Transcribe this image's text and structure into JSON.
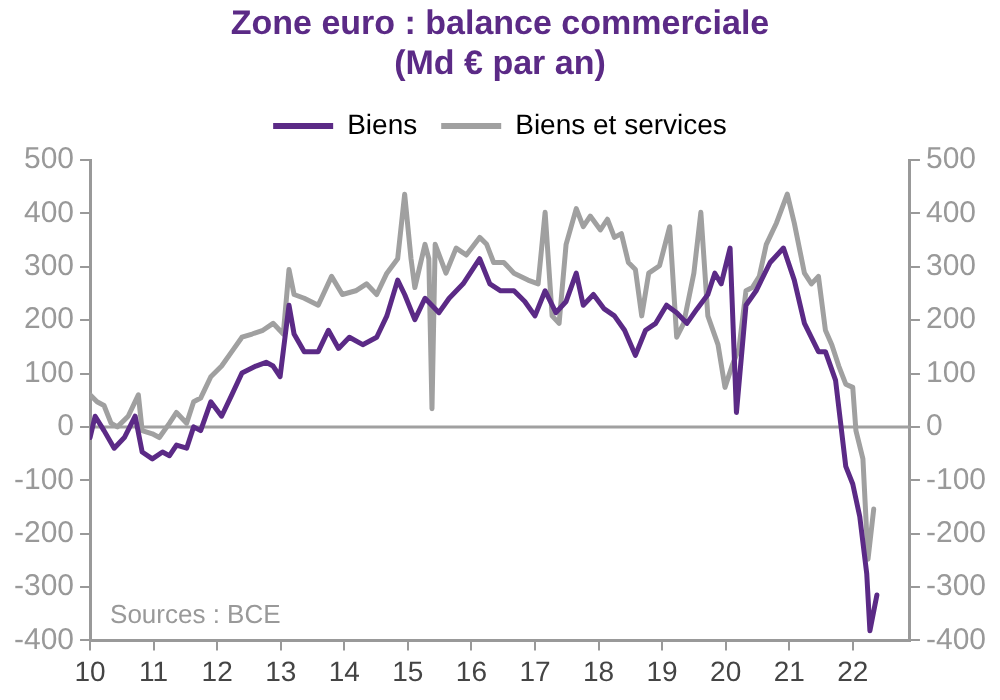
{
  "chart_data": {
    "type": "line",
    "title": "Zone euro : balance commerciale",
    "subtitle": "(Md € par an)",
    "xlim": [
      2010,
      2022.9
    ],
    "xticks": [
      {
        "value": 2010,
        "label": "10"
      },
      {
        "value": 2011,
        "label": "11"
      },
      {
        "value": 2012,
        "label": "12"
      },
      {
        "value": 2013,
        "label": "13"
      },
      {
        "value": 2014,
        "label": "14"
      },
      {
        "value": 2015,
        "label": "15"
      },
      {
        "value": 2016,
        "label": "16"
      },
      {
        "value": 2017,
        "label": "17"
      },
      {
        "value": 2018,
        "label": "18"
      },
      {
        "value": 2019,
        "label": "19"
      },
      {
        "value": 2020,
        "label": "20"
      },
      {
        "value": 2021,
        "label": "21"
      },
      {
        "value": 2022,
        "label": "22"
      }
    ],
    "ylim": [
      -400,
      500
    ],
    "yticks": [
      -400,
      -300,
      -200,
      -100,
      0,
      100,
      200,
      300,
      400,
      500
    ],
    "y2lim": [
      -400,
      500
    ],
    "y2ticks": [
      -400,
      -300,
      -200,
      -100,
      0,
      100,
      200,
      300,
      400,
      500
    ],
    "grid": false,
    "legend": "top",
    "marker": "none",
    "line_style": "solid",
    "ref_lines": [
      {
        "axis": "y",
        "value": 0,
        "color": "#a0a0a0"
      }
    ],
    "annotations": [
      "Sources : BCE"
    ],
    "series": [
      {
        "name": "Biens",
        "color": "#5b2a86",
        "x": [
          2010.0,
          2010.08,
          2010.22,
          2010.38,
          2010.54,
          2010.71,
          2010.82,
          2010.98,
          2011.14,
          2011.25,
          2011.36,
          2011.52,
          2011.63,
          2011.74,
          2011.9,
          2012.07,
          2012.23,
          2012.39,
          2012.61,
          2012.77,
          2012.88,
          2012.99,
          2013.13,
          2013.21,
          2013.37,
          2013.59,
          2013.75,
          2013.91,
          2014.08,
          2014.29,
          2014.51,
          2014.67,
          2014.84,
          2014.95,
          2015.11,
          2015.27,
          2015.49,
          2015.65,
          2015.87,
          2016.13,
          2016.29,
          2016.46,
          2016.67,
          2016.84,
          2017.0,
          2017.16,
          2017.33,
          2017.49,
          2017.65,
          2017.76,
          2017.92,
          2018.09,
          2018.25,
          2018.41,
          2018.58,
          2018.74,
          2018.9,
          2019.07,
          2019.23,
          2019.39,
          2019.55,
          2019.72,
          2019.83,
          2019.93,
          2020.07,
          2020.17,
          2020.32,
          2020.48,
          2020.7,
          2020.91,
          2021.08,
          2021.24,
          2021.46,
          2021.57,
          2021.73,
          2021.89,
          2022.0,
          2022.11,
          2022.22,
          2022.27,
          2022.38
        ],
        "values": [
          -20,
          20,
          -7,
          -40,
          -20,
          20,
          -47,
          -60,
          -47,
          -54,
          -34,
          -40,
          0,
          -7,
          47,
          20,
          60,
          101,
          114,
          121,
          114,
          94,
          228,
          174,
          141,
          141,
          181,
          147,
          168,
          154,
          168,
          208,
          275,
          248,
          201,
          241,
          214,
          241,
          268,
          315,
          268,
          255,
          255,
          235,
          208,
          255,
          214,
          235,
          288,
          228,
          248,
          221,
          208,
          181,
          134,
          181,
          194,
          228,
          214,
          194,
          221,
          248,
          288,
          268,
          335,
          27,
          228,
          255,
          308,
          335,
          275,
          194,
          141,
          141,
          87,
          -74,
          -107,
          -168,
          -275,
          -382,
          -315
        ]
      },
      {
        "name": "Biens et services",
        "color": "#a0a0a0",
        "x": [
          2010.0,
          2010.11,
          2010.22,
          2010.33,
          2010.43,
          2010.6,
          2010.76,
          2010.82,
          2010.98,
          2011.09,
          2011.25,
          2011.36,
          2011.52,
          2011.63,
          2011.74,
          2011.9,
          2012.07,
          2012.23,
          2012.39,
          2012.55,
          2012.72,
          2012.88,
          2013.04,
          2013.13,
          2013.21,
          2013.37,
          2013.59,
          2013.8,
          2013.97,
          2014.18,
          2014.35,
          2014.51,
          2014.67,
          2014.84,
          2014.95,
          2015.05,
          2015.11,
          2015.27,
          2015.33,
          2015.38,
          2015.43,
          2015.6,
          2015.76,
          2015.92,
          2016.13,
          2016.24,
          2016.35,
          2016.51,
          2016.67,
          2016.89,
          2017.05,
          2017.16,
          2017.27,
          2017.38,
          2017.49,
          2017.65,
          2017.76,
          2017.87,
          2018.03,
          2018.14,
          2018.25,
          2018.36,
          2018.47,
          2018.58,
          2018.68,
          2018.79,
          2018.96,
          2019.12,
          2019.23,
          2019.34,
          2019.5,
          2019.61,
          2019.72,
          2019.88,
          2019.99,
          2020.1,
          2020.21,
          2020.32,
          2020.42,
          2020.53,
          2020.64,
          2020.8,
          2020.97,
          2021.08,
          2021.24,
          2021.35,
          2021.46,
          2021.57,
          2021.67,
          2021.78,
          2021.89,
          2022.0,
          2022.05,
          2022.16,
          2022.24,
          2022.33
        ],
        "values": [
          60,
          47,
          40,
          7,
          0,
          20,
          60,
          -7,
          -13,
          -20,
          7,
          27,
          7,
          47,
          54,
          94,
          114,
          141,
          168,
          174,
          181,
          194,
          174,
          295,
          248,
          241,
          228,
          282,
          248,
          255,
          268,
          248,
          288,
          315,
          436,
          315,
          261,
          342,
          315,
          34,
          342,
          288,
          335,
          322,
          355,
          342,
          308,
          308,
          288,
          275,
          268,
          402,
          208,
          194,
          342,
          409,
          375,
          395,
          369,
          389,
          355,
          362,
          308,
          295,
          208,
          288,
          302,
          375,
          168,
          194,
          288,
          402,
          208,
          154,
          74,
          114,
          147,
          255,
          261,
          282,
          342,
          382,
          436,
          382,
          288,
          268,
          282,
          181,
          154,
          114,
          80,
          74,
          -7,
          -60,
          -248,
          -154
        ]
      }
    ]
  }
}
